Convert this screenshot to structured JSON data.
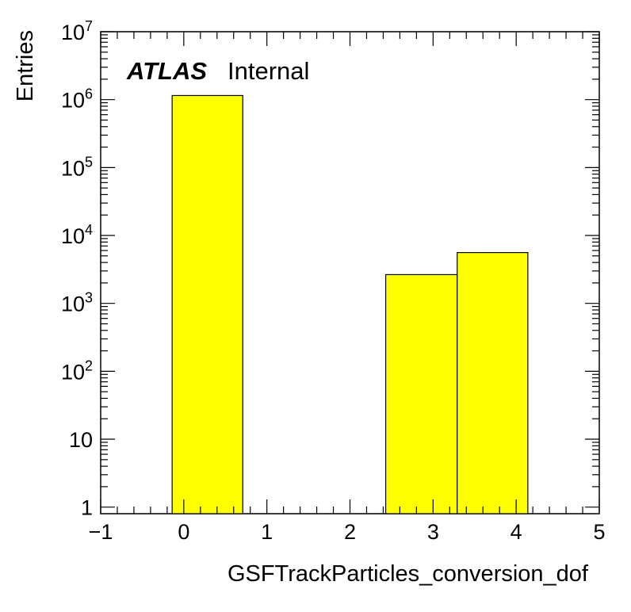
{
  "chart_data": {
    "type": "bar",
    "experiment_label": "ATLAS",
    "status_label": "Internal",
    "xlabel": "GSFTrackParticles_conversion_dof",
    "ylabel": "Entries",
    "xlim": [
      -1,
      5
    ],
    "ylim": [
      0.8,
      10000000
    ],
    "y_scale": "log",
    "fill_color": "#ffff00",
    "edge_color": "#000000",
    "x_ticks": [
      "−1",
      "0",
      "1",
      "2",
      "3",
      "4",
      "5"
    ],
    "y_ticks": [
      {
        "base": "10",
        "exp": "7"
      },
      {
        "base": "10",
        "exp": "6"
      },
      {
        "base": "10",
        "exp": "5"
      },
      {
        "base": "10",
        "exp": "4"
      },
      {
        "base": "10",
        "exp": "3"
      },
      {
        "base": "10",
        "exp": "2"
      },
      {
        "base": "10",
        "exp": ""
      },
      {
        "base": "1",
        "exp": ""
      }
    ],
    "bins": [
      {
        "x_low": -0.14,
        "x_high": 0.71,
        "value": 1150000
      },
      {
        "x_low": 2.43,
        "x_high": 3.29,
        "value": 2650
      },
      {
        "x_low": 3.29,
        "x_high": 4.14,
        "value": 5600
      }
    ]
  }
}
